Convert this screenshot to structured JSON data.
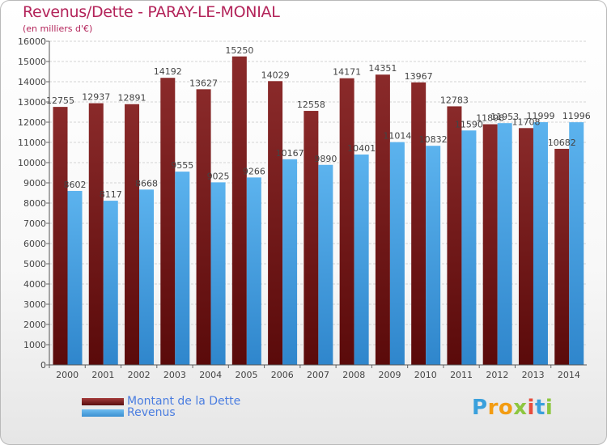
{
  "title": "Revenus/Dette - PARAY-LE-MONIAL",
  "subtitle": "(en milliers d'€)",
  "chart_data": {
    "type": "bar",
    "categories": [
      "2000",
      "2001",
      "2002",
      "2003",
      "2004",
      "2005",
      "2006",
      "2007",
      "2008",
      "2009",
      "2010",
      "2011",
      "2012",
      "2013",
      "2014"
    ],
    "series": [
      {
        "name": "Montant de la Dette",
        "color": "#7a1f1f",
        "values": [
          12755,
          12937,
          12891,
          14192,
          13627,
          15250,
          14029,
          12558,
          14171,
          14351,
          13967,
          12783,
          11898,
          11708,
          10682
        ]
      },
      {
        "name": "Revenus",
        "color": "#4ea8e6",
        "values": [
          8602,
          8117,
          8668,
          9555,
          9025,
          9266,
          10167,
          9890,
          10401,
          11014,
          10832,
          11590,
          11953,
          11999,
          11996
        ]
      }
    ],
    "yticks": [
      0,
      1000,
      2000,
      3000,
      4000,
      5000,
      6000,
      7000,
      8000,
      9000,
      10000,
      11000,
      12000,
      13000,
      14000,
      15000,
      16000
    ],
    "ylim": [
      0,
      16000
    ],
    "grid": true,
    "legend_position": "bottom-left"
  },
  "legend": [
    {
      "label": "Montant de la Dette",
      "color": "#7a1f1f"
    },
    {
      "label": "Revenus",
      "color": "#4ea8e6"
    }
  ],
  "logo": {
    "letters": [
      "P",
      "r",
      "o",
      "x",
      "i",
      "t",
      "i"
    ],
    "colors": [
      "#3aa0dc",
      "#f39c12",
      "#f39c12",
      "#8dc63f",
      "#e74c3c",
      "#3aa0dc",
      "#8dc63f"
    ]
  }
}
